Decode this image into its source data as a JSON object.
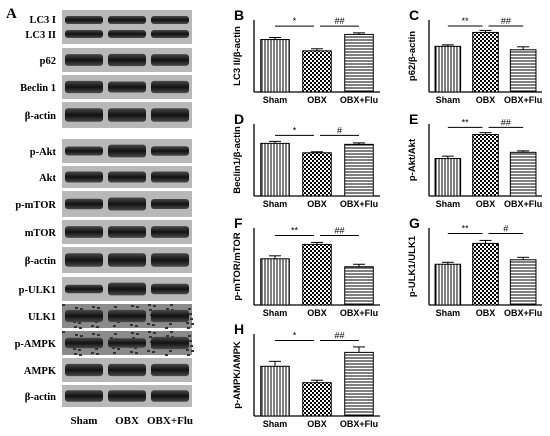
{
  "panel_a": {
    "letter": "A",
    "blot_labels": [
      "LC3 I",
      "LC3 II",
      "p62",
      "Beclin 1",
      "β-actin",
      "p-Akt",
      "Akt",
      "p-mTOR",
      "mTOR",
      "β-actin",
      "p-ULK1",
      "ULK1",
      "p-AMPK",
      "AMPK",
      "β-actin"
    ],
    "lane_labels": [
      "Sham",
      "OBX",
      "OBX+Flu"
    ]
  },
  "colors": {
    "bar": "#ffffff",
    "axis": "#000000",
    "blot_bg": "#1f1f1f"
  },
  "chart_data": [
    {
      "type": "bar",
      "panel": "B",
      "ylabel": "LC3 II/β-actin",
      "categories": [
        "Sham",
        "OBX",
        "OBX+Flu"
      ],
      "values": [
        1.02,
        0.8,
        1.12
      ],
      "errors": [
        0.04,
        0.04,
        0.03
      ],
      "ylim": [
        0,
        1.4
      ],
      "patterns": [
        "vertical",
        "checker",
        "horizontal"
      ],
      "significance": [
        {
          "label": "*",
          "from": 0,
          "to": 1,
          "y": 1.28
        },
        {
          "label": "##",
          "from": 1,
          "to": 2,
          "y": 1.28
        }
      ]
    },
    {
      "type": "bar",
      "panel": "C",
      "ylabel": "p62/β-actin",
      "categories": [
        "Sham",
        "OBX",
        "OBX+Flu"
      ],
      "values": [
        0.92,
        1.2,
        0.85
      ],
      "errors": [
        0.03,
        0.04,
        0.06
      ],
      "ylim": [
        0,
        1.45
      ],
      "patterns": [
        "vertical",
        "checker",
        "horizontal"
      ],
      "significance": [
        {
          "label": "**",
          "from": 0,
          "to": 1,
          "y": 1.33
        },
        {
          "label": "##",
          "from": 1,
          "to": 2,
          "y": 1.33
        }
      ]
    },
    {
      "type": "bar",
      "panel": "D",
      "ylabel": "Beclin1/β-actin",
      "categories": [
        "Sham",
        "OBX",
        "OBX+Flu"
      ],
      "values": [
        1.06,
        0.87,
        1.04
      ],
      "errors": [
        0.04,
        0.02,
        0.03
      ],
      "ylim": [
        0,
        1.45
      ],
      "patterns": [
        "vertical",
        "checker",
        "horizontal"
      ],
      "significance": [
        {
          "label": "*",
          "from": 0,
          "to": 1,
          "y": 1.22
        },
        {
          "label": "#",
          "from": 1,
          "to": 2,
          "y": 1.22
        }
      ]
    },
    {
      "type": "bar",
      "panel": "E",
      "ylabel": "p-Akt/Akt",
      "categories": [
        "Sham",
        "OBX",
        "OBX+Flu"
      ],
      "values": [
        0.78,
        1.28,
        0.91
      ],
      "errors": [
        0.05,
        0.04,
        0.03
      ],
      "ylim": [
        0,
        1.5
      ],
      "patterns": [
        "vertical",
        "checker",
        "horizontal"
      ],
      "significance": [
        {
          "label": "**",
          "from": 0,
          "to": 1,
          "y": 1.43
        },
        {
          "label": "##",
          "from": 1,
          "to": 2,
          "y": 1.43
        }
      ]
    },
    {
      "type": "bar",
      "panel": "F",
      "ylabel": "p-mTOR/mTOR",
      "categories": [
        "Sham",
        "OBX",
        "OBX+Flu"
      ],
      "values": [
        0.93,
        1.22,
        0.77
      ],
      "errors": [
        0.06,
        0.04,
        0.05
      ],
      "ylim": [
        0,
        1.55
      ],
      "patterns": [
        "vertical",
        "checker",
        "horizontal"
      ],
      "significance": [
        {
          "label": "**",
          "from": 0,
          "to": 1,
          "y": 1.4
        },
        {
          "label": "##",
          "from": 1,
          "to": 2,
          "y": 1.4
        }
      ]
    },
    {
      "type": "bar",
      "panel": "G",
      "ylabel": "p-ULK1/ULK1",
      "categories": [
        "Sham",
        "OBX",
        "OBX+Flu"
      ],
      "values": [
        0.82,
        1.24,
        0.91
      ],
      "errors": [
        0.04,
        0.06,
        0.05
      ],
      "ylim": [
        0,
        1.55
      ],
      "patterns": [
        "vertical",
        "checker",
        "horizontal"
      ],
      "significance": [
        {
          "label": "**",
          "from": 0,
          "to": 1,
          "y": 1.44
        },
        {
          "label": "#",
          "from": 1,
          "to": 2,
          "y": 1.44
        }
      ]
    },
    {
      "type": "bar",
      "panel": "H",
      "ylabel": "p-AMPK/AMPK",
      "categories": [
        "Sham",
        "OBX",
        "OBX+Flu"
      ],
      "values": [
        1.0,
        0.67,
        1.28
      ],
      "errors": [
        0.1,
        0.05,
        0.11
      ],
      "ylim": [
        0,
        1.65
      ],
      "patterns": [
        "vertical",
        "checker",
        "horizontal"
      ],
      "significance": [
        {
          "label": "*",
          "from": 0,
          "to": 1,
          "y": 1.52
        },
        {
          "label": "##",
          "from": 1,
          "to": 2,
          "y": 1.52
        }
      ]
    }
  ]
}
